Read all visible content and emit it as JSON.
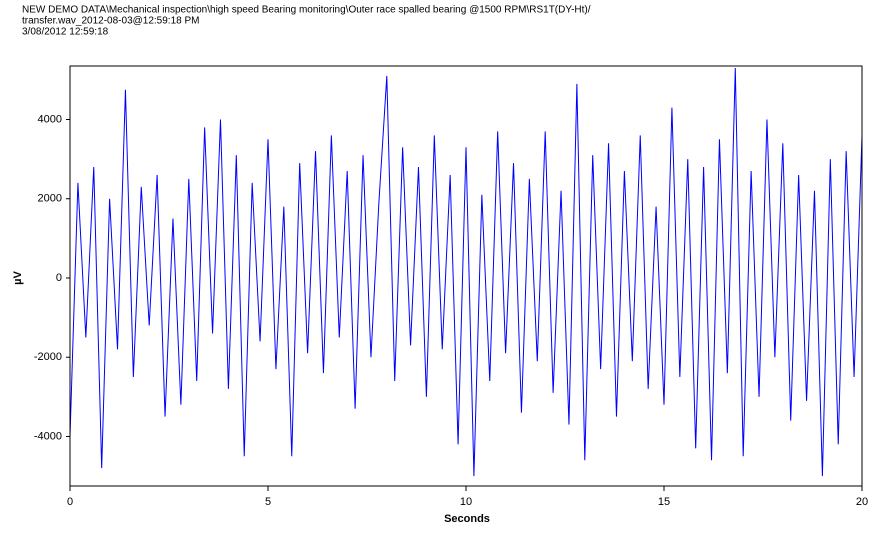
{
  "chart_data": {
    "type": "line",
    "title": [
      "NEW DEMO DATA\\Mechanical inspection\\high speed Bearing monitoring\\Outer race spalled bearing @1500 RPM\\RS1T(DY-Ht)/",
      "transfer.wav_2012-08-03@12:59:18 PM",
      "3/08/2012 12:59:18"
    ],
    "x_label": "Seconds",
    "y_label": "µV",
    "xlim": [
      0,
      20
    ],
    "ylim": [
      -5250,
      5350
    ],
    "xticks": [
      0,
      5,
      10,
      15,
      20
    ],
    "yticks": [
      -4000,
      -2000,
      0,
      2000,
      4000
    ],
    "x": [
      0,
      0.2,
      0.4,
      0.6,
      0.8,
      1,
      1.2,
      1.4,
      1.6,
      1.8,
      2,
      2.2,
      2.4,
      2.6,
      2.8,
      3,
      3.2,
      3.4,
      3.6,
      3.8,
      4,
      4.2,
      4.4,
      4.6,
      4.8,
      5,
      5.2,
      5.4,
      5.6,
      5.8,
      6,
      6.2,
      6.4,
      6.6,
      6.8,
      7,
      7.2,
      7.4,
      7.6,
      7.8,
      8,
      8.2,
      8.4,
      8.6,
      8.8,
      9,
      9.2,
      9.4,
      9.6,
      9.8,
      10,
      10.2,
      10.4,
      10.6,
      10.8,
      11,
      11.2,
      11.4,
      11.6,
      11.8,
      12,
      12.2,
      12.4,
      12.6,
      12.8,
      13,
      13.2,
      13.4,
      13.6,
      13.8,
      14,
      14.2,
      14.4,
      14.6,
      14.8,
      15,
      15.2,
      15.4,
      15.6,
      15.8,
      16,
      16.2,
      16.4,
      16.6,
      16.8,
      17,
      17.2,
      17.4,
      17.6,
      17.8,
      18,
      18.2,
      18.4,
      18.6,
      18.8,
      19,
      19.2,
      19.4,
      19.6,
      19.8,
      20
    ],
    "series": [
      {
        "name": "RS1T(DY-Ht)",
        "color": "#0000ff",
        "values": [
          -4000,
          2400,
          -1500,
          2800,
          -4800,
          2000,
          -1800,
          4750,
          -2500,
          2300,
          -1200,
          2600,
          -3500,
          1500,
          -3200,
          2500,
          -2600,
          3800,
          -1400,
          4000,
          -2800,
          3100,
          -4500,
          2400,
          -1600,
          3500,
          -2300,
          1800,
          -4500,
          2900,
          -1900,
          3200,
          -2400,
          3600,
          -1500,
          2700,
          -3300,
          3100,
          -2000,
          1900,
          5100,
          -2600,
          3300,
          -1700,
          2800,
          -3000,
          3600,
          -1800,
          2600,
          -4200,
          3300,
          -5000,
          2100,
          -2600,
          3700,
          -1900,
          2900,
          -3400,
          2500,
          -2100,
          3700,
          -2900,
          2200,
          -3700,
          4900,
          -4600,
          3100,
          -2300,
          3400,
          -3500,
          2700,
          -2100,
          3600,
          -2800,
          1800,
          -3200,
          4300,
          -2500,
          3000,
          -4300,
          2800,
          -4600,
          3500,
          -2400,
          5300,
          -4500,
          2700,
          -3000,
          4000,
          -2000,
          3400,
          -3600,
          2600,
          -3100,
          2200,
          -5000,
          3000,
          -4200,
          3200,
          -2500,
          3600
        ]
      }
    ]
  }
}
